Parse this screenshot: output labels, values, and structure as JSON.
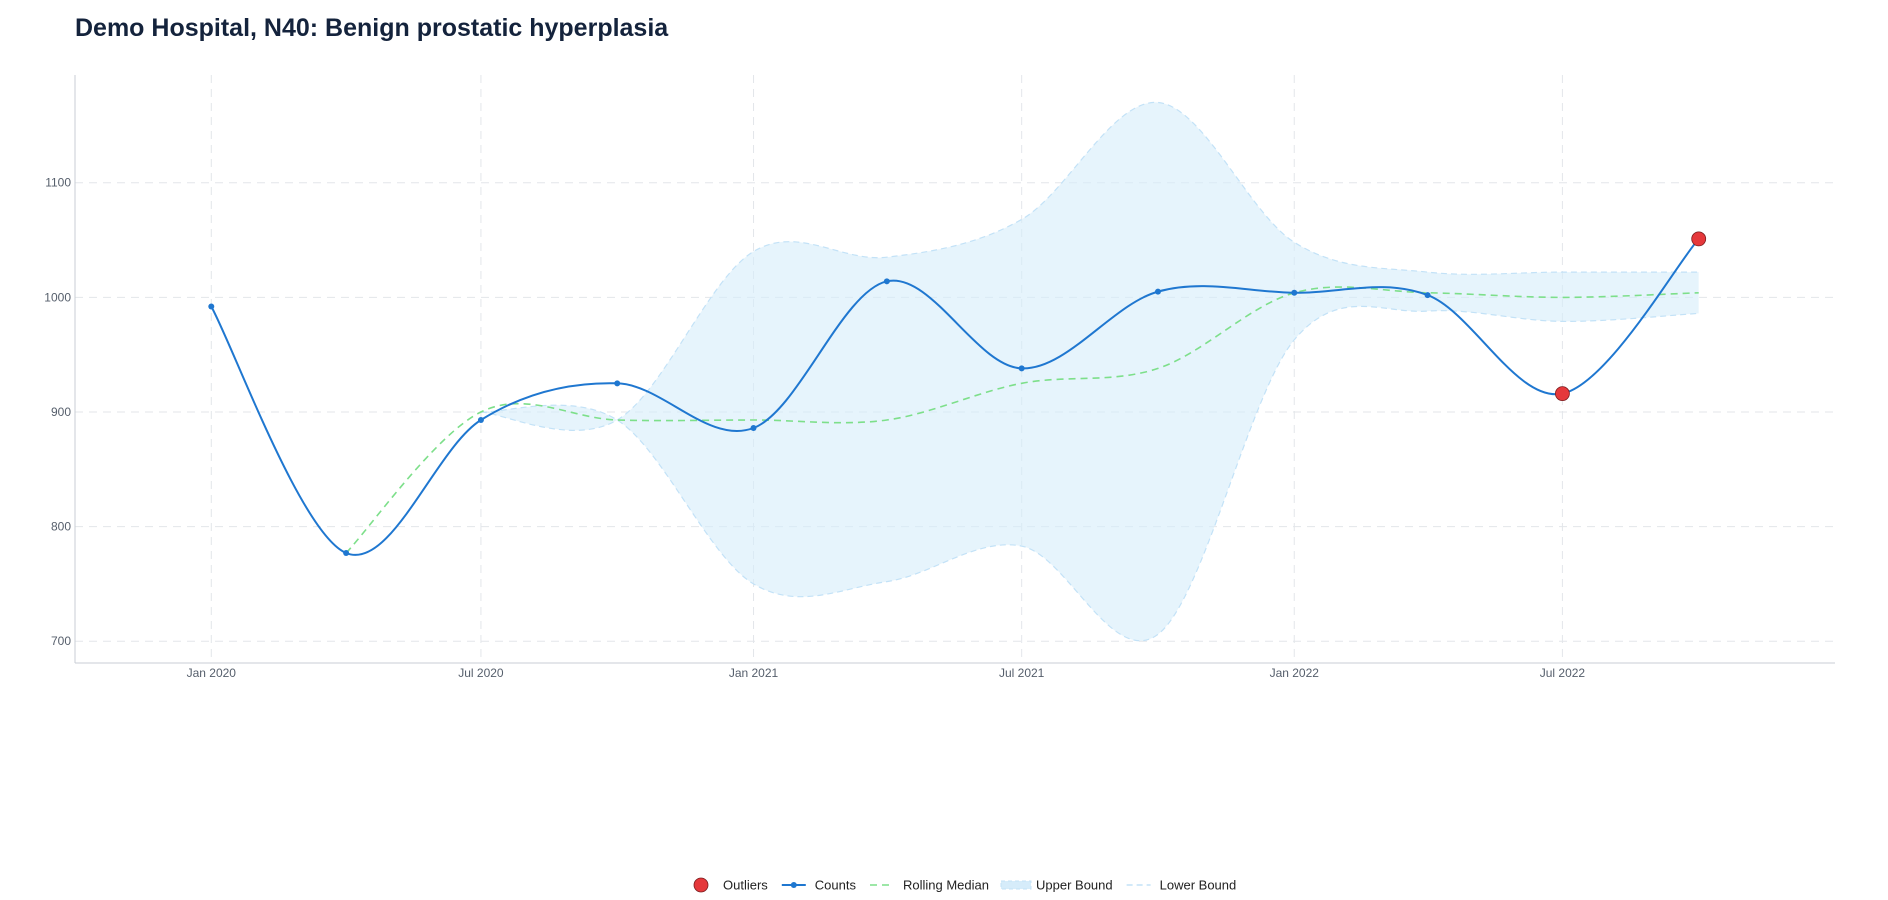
{
  "chart_data": {
    "type": "line",
    "title": "Demo Hospital, N40: Benign prostatic hyperplasia",
    "xlabel": "",
    "ylabel": "",
    "x": [
      "2020-01-01",
      "2020-04-01",
      "2020-07-01",
      "2020-10-01",
      "2021-01-01",
      "2021-04-01",
      "2021-07-01",
      "2021-10-01",
      "2022-01-01",
      "2022-04-01",
      "2022-07-01",
      "2022-10-01"
    ],
    "x_ticks": [
      {
        "label": "Jan 2020",
        "date": "2020-01-01"
      },
      {
        "label": "Jul 2020",
        "date": "2020-07-01"
      },
      {
        "label": "Jan 2021",
        "date": "2021-01-01"
      },
      {
        "label": "Jul 2021",
        "date": "2021-07-01"
      },
      {
        "label": "Jan 2022",
        "date": "2022-01-01"
      },
      {
        "label": "Jul 2022",
        "date": "2022-07-01"
      }
    ],
    "xlim": [
      "2019-10-01",
      "2023-01-01"
    ],
    "y_ticks": [
      700,
      800,
      900,
      1000,
      1100
    ],
    "ylim": [
      681,
      1194
    ],
    "grid": true,
    "legend_position": "bottom-center",
    "series": [
      {
        "name": "Counts",
        "type": "line",
        "color": "#1f77d0",
        "values": [
          992,
          777,
          893,
          925,
          886,
          1014,
          938,
          1005,
          1004,
          1002,
          916,
          1051
        ]
      },
      {
        "name": "Rolling Median",
        "type": "line",
        "style": "dashed",
        "color": "#7ddf8a",
        "values": [
          null,
          777,
          900,
          893,
          893,
          893,
          925,
          938,
          1004,
          1004,
          1000,
          1004
        ]
      },
      {
        "name": "Upper Bound",
        "type": "band-upper",
        "color": "#d6ecfa",
        "values": [
          null,
          null,
          900,
          893,
          1040,
          1035,
          1068,
          1170,
          1048,
          1022,
          1022,
          1022
        ]
      },
      {
        "name": "Lower Bound",
        "type": "band-lower",
        "color": "#d6ecfa",
        "values": [
          null,
          null,
          900,
          893,
          750,
          752,
          783,
          706,
          963,
          988,
          979,
          986
        ]
      },
      {
        "name": "Outliers",
        "type": "scatter",
        "color": "#e5383b",
        "points": [
          {
            "x": "2022-07-01",
            "y": 916
          },
          {
            "x": "2022-10-01",
            "y": 1051
          }
        ]
      }
    ]
  }
}
